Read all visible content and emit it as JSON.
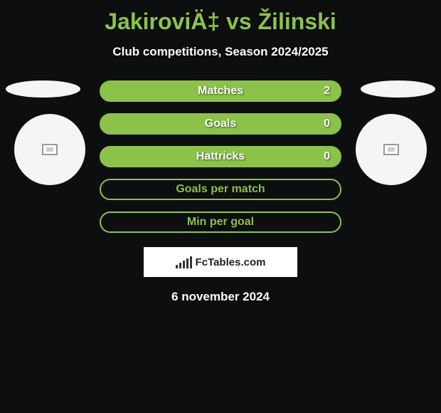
{
  "header": {
    "title": "JakiroviÄ‡ vs Žilinski",
    "subtitle": "Club competitions, Season 2024/2025"
  },
  "stats": [
    {
      "label": "Matches",
      "value": "2",
      "filled": true,
      "showValue": true
    },
    {
      "label": "Goals",
      "value": "0",
      "filled": true,
      "showValue": true
    },
    {
      "label": "Hattricks",
      "value": "0",
      "filled": true,
      "showValue": true
    },
    {
      "label": "Goals per match",
      "value": "",
      "filled": false,
      "showValue": false
    },
    {
      "label": "Min per goal",
      "value": "",
      "filled": false,
      "showValue": false
    }
  ],
  "branding": {
    "logo_text": "FcTables.com"
  },
  "footer": {
    "date": "6 november 2024"
  },
  "colors": {
    "accent": "#8bc34a",
    "background": "#0d0e0f",
    "light": "#f5f5f5",
    "white": "#ffffff"
  }
}
